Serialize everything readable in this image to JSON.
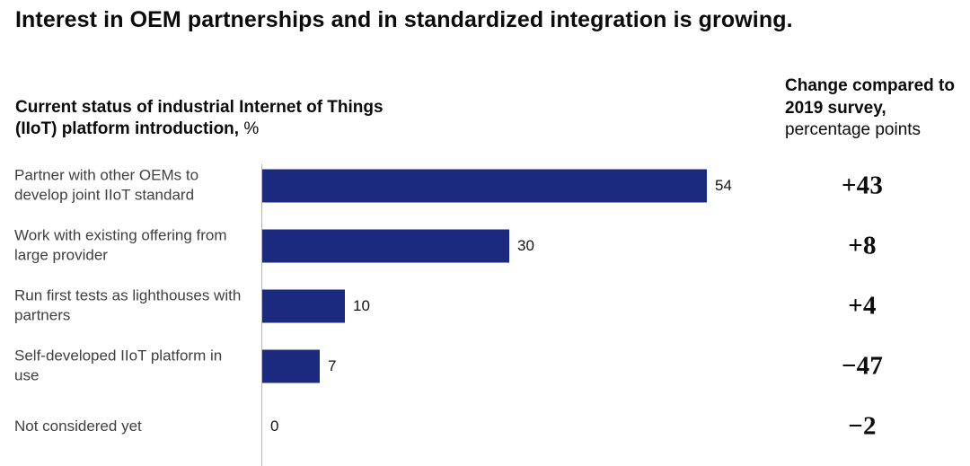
{
  "title": "Interest in OEM partnerships and in standardized integration is growing.",
  "left_header": {
    "bold": "Current status of industrial Internet of Things (IIoT) platform introduction,",
    "regular": " %"
  },
  "right_header": {
    "bold": "Change compared to 2019 survey,",
    "regular": "percentage points"
  },
  "chart_data": {
    "type": "bar",
    "orientation": "horizontal",
    "title": "Current status of industrial Internet of Things (IIoT) platform introduction, %",
    "categories": [
      "Partner with other OEMs to develop joint IIoT standard",
      "Work with existing offering from large provider",
      "Run first tests as lighthouses with partners",
      "Self-developed IIoT platform in use",
      "Not considered yet"
    ],
    "values": [
      54,
      30,
      10,
      7,
      0
    ],
    "value_unit": "%",
    "series": [
      {
        "name": "Current status, %",
        "values": [
          54,
          30,
          10,
          7,
          0
        ]
      },
      {
        "name": "Change compared to 2019 survey, percentage points",
        "values": [
          43,
          8,
          4,
          -47,
          -2
        ]
      }
    ],
    "change_labels": [
      "+43",
      "+8",
      "+4",
      "−47",
      "−2"
    ],
    "xlim": [
      0,
      60
    ],
    "grid": false,
    "legend": "none",
    "bar_color": "#1b2a7e"
  },
  "colors": {
    "bar": "#1b2a7e",
    "axis_line": "#b5b5b5",
    "category_label": "#3f3f3f",
    "text": "#0b0b0b"
  }
}
